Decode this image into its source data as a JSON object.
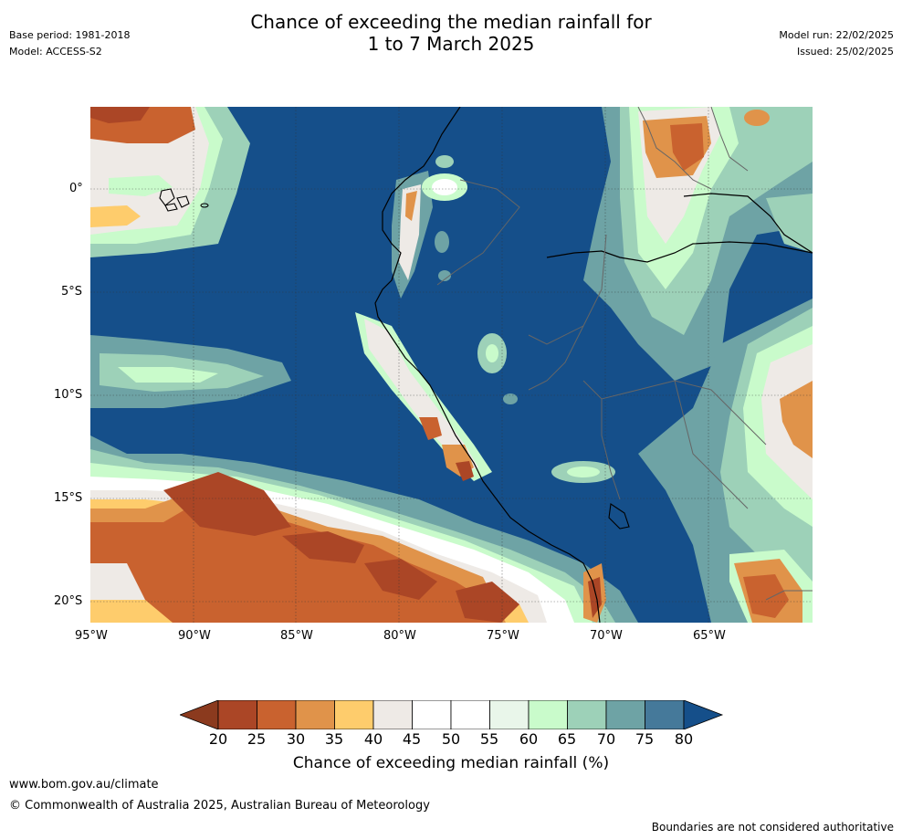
{
  "header": {
    "base_period": "Base period: 1981-2018",
    "model": "Model: ACCESS-S2",
    "title_line1": "Chance of exceeding the median rainfall for",
    "title_line2": "1 to 7 March 2025",
    "model_run": "Model run: 22/02/2025",
    "issued": "Issued: 25/02/2025"
  },
  "map": {
    "lon_labels": [
      "95°W",
      "90°W",
      "85°W",
      "80°W",
      "75°W",
      "70°W",
      "65°W"
    ],
    "lat_labels": [
      "0°",
      "5°S",
      "10°S",
      "15°S",
      "20°S"
    ],
    "ocean_color": "#154f8a",
    "land_color": "#154f8a"
  },
  "colorbar": {
    "ticks": [
      "20",
      "25",
      "30",
      "35",
      "40",
      "45",
      "50",
      "55",
      "60",
      "65",
      "70",
      "75",
      "80"
    ],
    "colors": [
      "#8b3a1e",
      "#ab4626",
      "#c9622f",
      "#e0934a",
      "#fecc6c",
      "#eeeae6",
      "#ffffff",
      "#ffffff",
      "#e9f6ea",
      "#c9fbcb",
      "#9dd1b8",
      "#6ea3a5",
      "#45799a",
      "#154f8a"
    ],
    "label": "Chance of exceeding median rainfall (%)"
  },
  "footer": {
    "url": "www.bom.gov.au/climate",
    "copyright": "© Commonwealth of Australia 2025, Australian Bureau of Meteorology",
    "disclaimer": "Boundaries are not considered authoritative"
  }
}
